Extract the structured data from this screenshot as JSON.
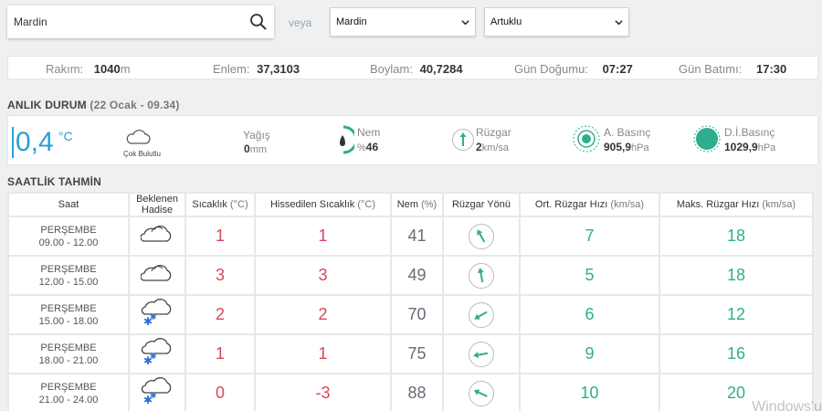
{
  "search": {
    "value": "Mardin"
  },
  "veya_label": "veya",
  "selects": {
    "province": "Mardin",
    "district": "Artuklu"
  },
  "info_bar": {
    "altitude_label": "Rakım:",
    "altitude_value": "1040",
    "altitude_unit": "m",
    "lat_label": "Enlem:",
    "lat_value": "37,3103",
    "lon_label": "Boylam:",
    "lon_value": "40,7284",
    "sunrise_label": "Gün Doğumu:",
    "sunrise_value": "07:27",
    "sunset_label": "Gün Batımı:",
    "sunset_value": "17:30"
  },
  "current": {
    "title": "ANLIK DURUM",
    "datetime": "(22 Ocak - 09.34)",
    "temperature": "0,4",
    "temp_unit": "°C",
    "condition": "Çok Bulutlu",
    "condition_icon": "cloud-icon",
    "precip_label": "Yağış",
    "precip_value": "0",
    "precip_unit": "mm",
    "humidity_label": "Nem",
    "humidity_prefix": "%",
    "humidity_value": "46",
    "wind_label": "Rüzgar",
    "wind_value": "2",
    "wind_unit": "km/sa",
    "pressure_label": "A. Basınç",
    "pressure_value": "905,9",
    "pressure_unit": "hPa",
    "sea_pressure_label": "D.İ.Basınç",
    "sea_pressure_value": "1029,9",
    "sea_pressure_unit": "hPa",
    "accent_color": "#2fae8f"
  },
  "forecast": {
    "title": "SAATLİK TAHMİN",
    "headers": {
      "time": "Saat",
      "condition_line1": "Beklenen",
      "condition_line2": "Hadise",
      "temp": "Sıcaklık",
      "temp_unit": "(°C)",
      "feels": "Hissedilen Sıcaklık",
      "feels_unit": "(°C)",
      "humidity": "Nem",
      "humidity_unit": "(%)",
      "wind_dir": "Rüzgar Yönü",
      "avg_wind": "Ort. Rüzgar Hızı",
      "avg_wind_unit": "(km/sa)",
      "max_wind": "Maks. Rüzgar Hızı",
      "max_wind_unit": "(km/sa)"
    },
    "rows": [
      {
        "day": "PERŞEMBE",
        "range": "09.00 - 12.00",
        "icon": "cloud-icon",
        "temp": "1",
        "feels": "1",
        "humidity": "41",
        "wind_dir_deg": -30,
        "avg": "7",
        "max": "18"
      },
      {
        "day": "PERŞEMBE",
        "range": "12.00 - 15.00",
        "icon": "cloud-icon",
        "temp": "3",
        "feels": "3",
        "humidity": "49",
        "wind_dir_deg": -10,
        "avg": "5",
        "max": "18"
      },
      {
        "day": "PERŞEMBE",
        "range": "15.00 - 18.00",
        "icon": "snow-cloud-icon",
        "temp": "2",
        "feels": "2",
        "humidity": "70",
        "wind_dir_deg": -120,
        "avg": "6",
        "max": "12"
      },
      {
        "day": "PERŞEMBE",
        "range": "18.00 - 21.00",
        "icon": "snow-cloud-icon",
        "temp": "1",
        "feels": "1",
        "humidity": "75",
        "wind_dir_deg": -100,
        "avg": "9",
        "max": "16"
      },
      {
        "day": "PERŞEMBE",
        "range": "21.00 - 24.00",
        "icon": "snow-cloud-icon",
        "temp": "0",
        "feels": "-3",
        "humidity": "88",
        "wind_dir_deg": -65,
        "avg": "10",
        "max": "20"
      }
    ]
  },
  "watermark": "Windows'u"
}
